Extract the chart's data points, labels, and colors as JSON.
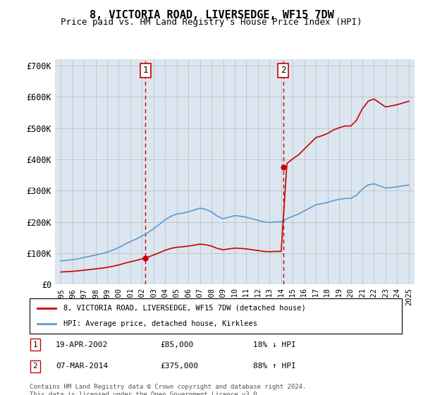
{
  "title": "8, VICTORIA ROAD, LIVERSEDGE, WF15 7DW",
  "subtitle": "Price paid vs. HM Land Registry's House Price Index (HPI)",
  "background_color": "#dce6f0",
  "plot_bg_color": "#dce6f0",
  "ylabel_color": "#000000",
  "sale1_date": 2002.3,
  "sale1_price": 85000,
  "sale1_label": "1",
  "sale1_display": "19-APR-2002",
  "sale1_note": "18% ↓ HPI",
  "sale2_date": 2014.18,
  "sale2_price": 375000,
  "sale2_label": "2",
  "sale2_display": "07-MAR-2014",
  "sale2_note": "88% ↑ HPI",
  "red_line_color": "#cc0000",
  "blue_line_color": "#5b9bd5",
  "dashed_line_color": "#cc0000",
  "legend_label1": "8, VICTORIA ROAD, LIVERSEDGE, WF15 7DW (detached house)",
  "legend_label2": "HPI: Average price, detached house, Kirklees",
  "footer": "Contains HM Land Registry data © Crown copyright and database right 2024.\nThis data is licensed under the Open Government Licence v3.0.",
  "ylim": [
    0,
    720000
  ],
  "xlim_start": 1994.5,
  "xlim_end": 2025.5,
  "yticks": [
    0,
    100000,
    200000,
    300000,
    400000,
    500000,
    600000,
    700000
  ],
  "ytick_labels": [
    "£0",
    "£100K",
    "£200K",
    "£300K",
    "£400K",
    "£500K",
    "£600K",
    "£700K"
  ],
  "xticks": [
    1995,
    1996,
    1997,
    1998,
    1999,
    2000,
    2001,
    2002,
    2003,
    2004,
    2005,
    2006,
    2007,
    2008,
    2009,
    2010,
    2011,
    2012,
    2013,
    2014,
    2015,
    2016,
    2017,
    2018,
    2019,
    2020,
    2021,
    2022,
    2023,
    2024,
    2025
  ]
}
